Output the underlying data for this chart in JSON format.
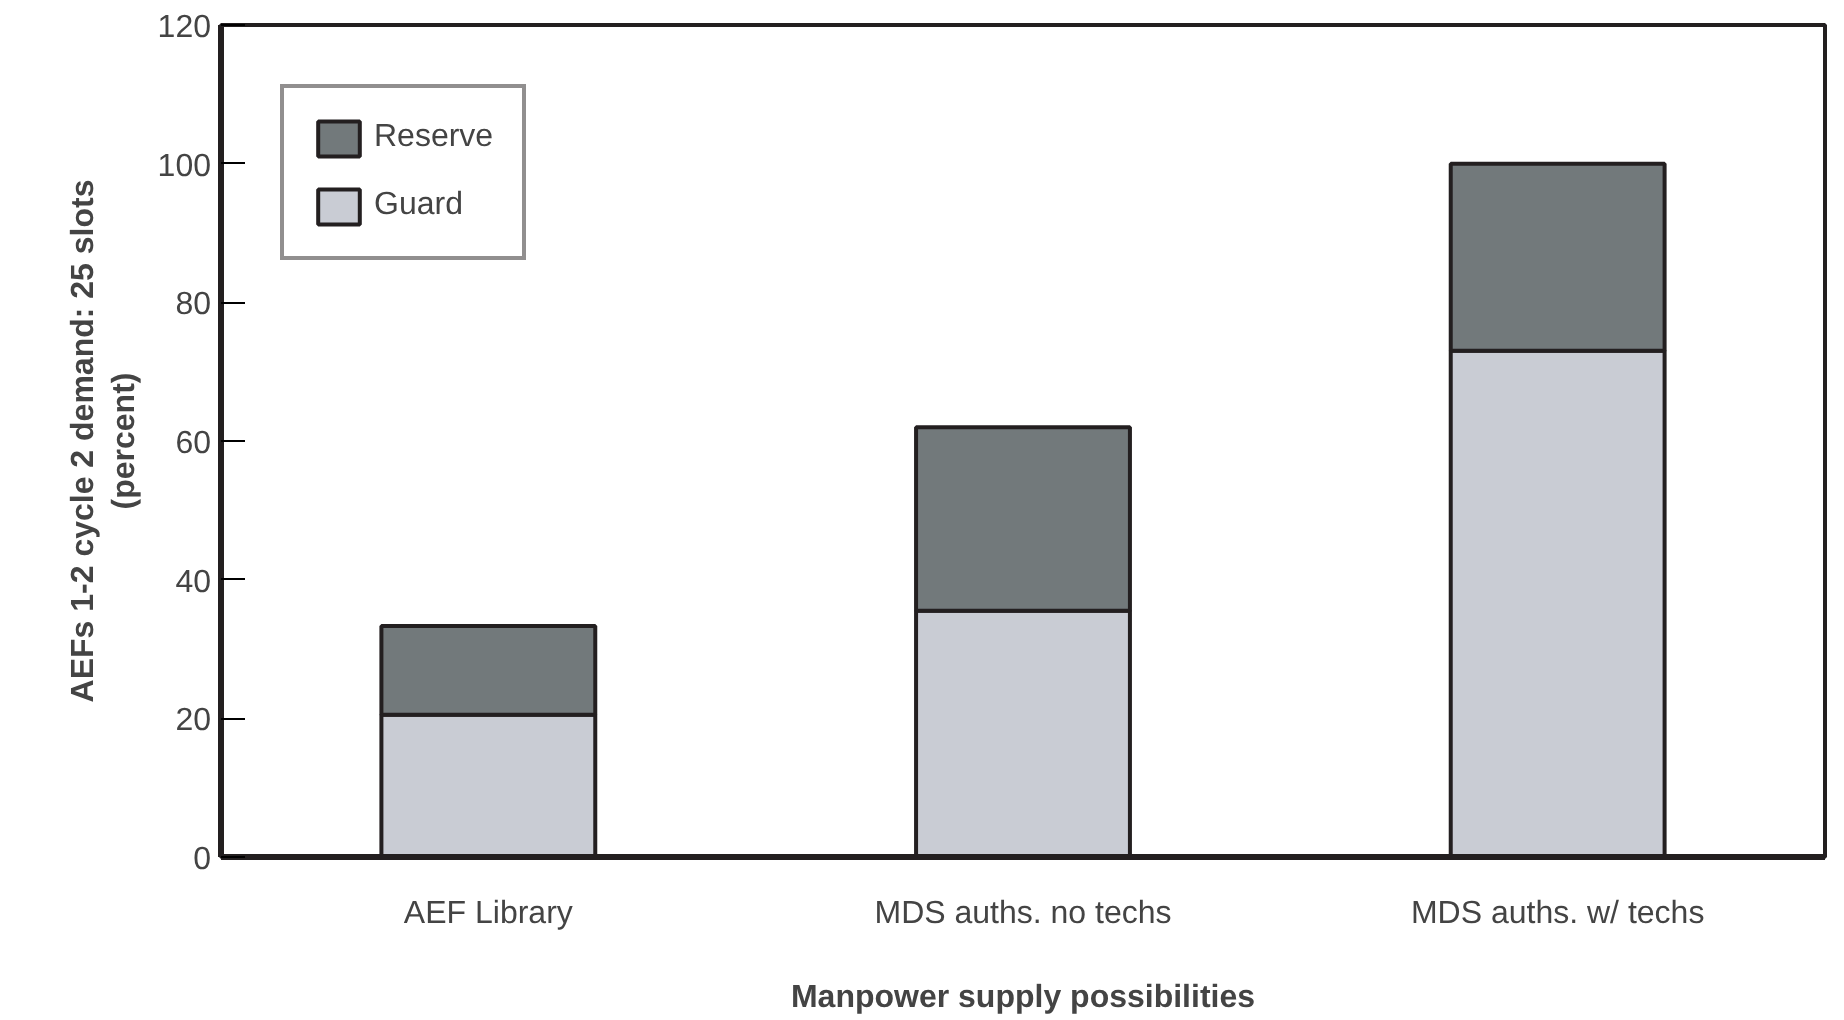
{
  "chart_data": {
    "type": "bar",
    "stacked": true,
    "xlabel": "Manpower supply possibilities",
    "ylabel": "AEFs 1-2 cycle 2 demand: 25 slots\n(percent)",
    "categories": [
      "AEF Library",
      "MDS auths. no techs",
      "MDS auths. w/ techs"
    ],
    "series": [
      {
        "name": "Guard",
        "color": "#c9ccd4",
        "values": [
          20.5,
          35.5,
          73
        ]
      },
      {
        "name": "Reserve",
        "color": "#72797b",
        "values": [
          12.8,
          26.5,
          27
        ]
      }
    ],
    "ylim": [
      0,
      120
    ],
    "yticks": [
      0,
      20,
      40,
      60,
      80,
      100,
      120
    ],
    "grid": false,
    "legend": "top left"
  }
}
